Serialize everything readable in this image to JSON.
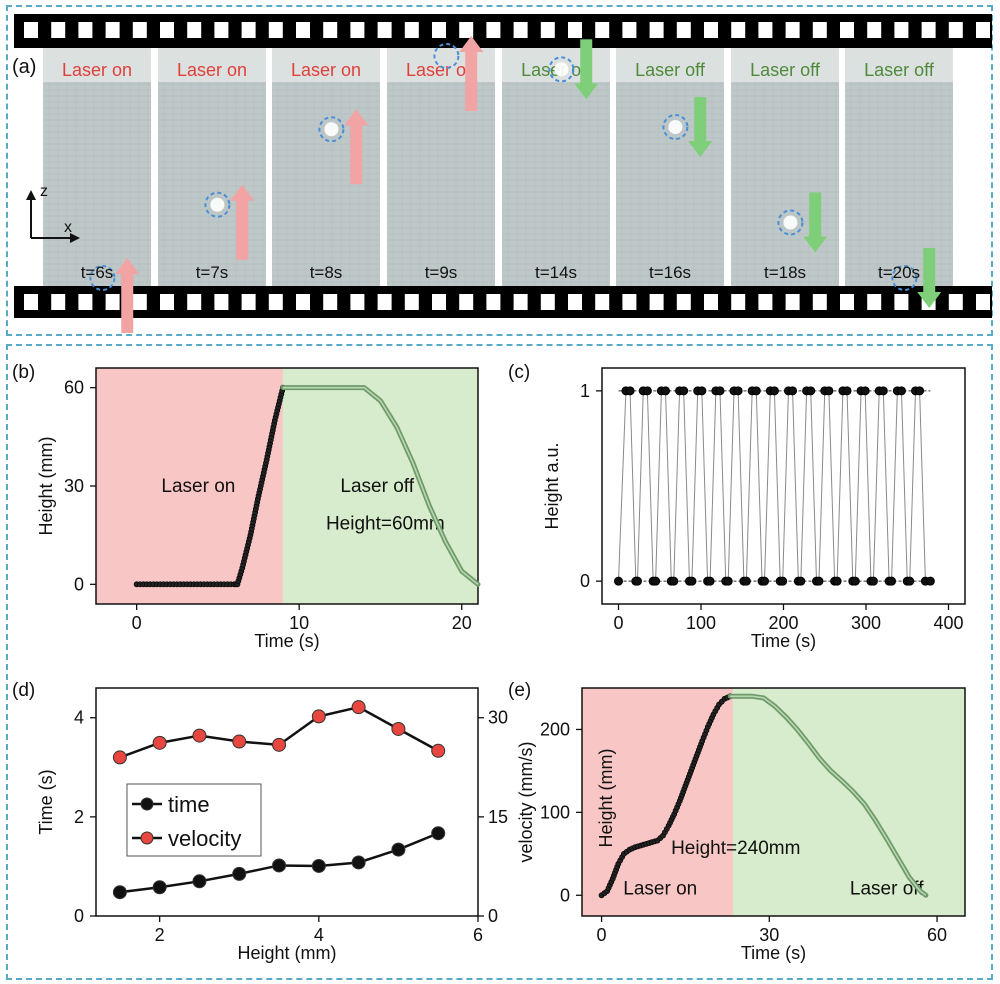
{
  "panel_a": {
    "letter": "(a)",
    "axis_z": "z",
    "axis_x": "x",
    "frames": [
      {
        "status": "Laser on",
        "state": "on",
        "time": "t=6s",
        "arrow": "up",
        "particle_level": 0.0
      },
      {
        "status": "Laser on",
        "state": "on",
        "time": "t=7s",
        "arrow": "up",
        "particle_level": 0.33
      },
      {
        "status": "Laser on",
        "state": "on",
        "time": "t=8s",
        "arrow": "up",
        "particle_level": 0.67
      },
      {
        "status": "Laser on",
        "state": "on",
        "time": "t=9s",
        "arrow": "up",
        "particle_level": 1.0
      },
      {
        "status": "Laser off",
        "state": "off",
        "time": "t=14s",
        "arrow": "down",
        "particle_level": 0.94
      },
      {
        "status": "Laser off",
        "state": "off",
        "time": "t=16s",
        "arrow": "down",
        "particle_level": 0.68
      },
      {
        "status": "Laser off",
        "state": "off",
        "time": "t=18s",
        "arrow": "down",
        "particle_level": 0.25
      },
      {
        "status": "Laser off",
        "state": "off",
        "time": "t=20s",
        "arrow": "down",
        "particle_level": 0.0
      }
    ]
  },
  "colors": {
    "laser_on_text": "#e0403a",
    "laser_off_text": "#4f8a3a",
    "laser_on_bg": "#f8c6c4",
    "laser_off_bg": "#d7eccc",
    "up_arrow": "#f2a3a3",
    "down_arrow": "#7fcf7a",
    "film": "#000000",
    "frame_bg": "#bfc8c8",
    "dashed_border": "#58aac9",
    "particle_ring": "#4a8fd6",
    "time_marker": "#e8473f",
    "velocity_marker": "#e8473f",
    "line_marker": "#111111",
    "green_curve": "#6f9a6a"
  },
  "chart_data": [
    {
      "id": "b",
      "letter": "(b)",
      "type": "line",
      "xlabel": "Time (s)",
      "ylabel": "Height (mm)",
      "xlim": [
        -2.5,
        21
      ],
      "ylim": [
        -6,
        66
      ],
      "xticks": [
        0,
        10,
        20
      ],
      "yticks": [
        0,
        30,
        60
      ],
      "regions": [
        {
          "label": "Laser on",
          "x0": -2.5,
          "x1": 9,
          "color": "laser_on"
        },
        {
          "label": "Laser off",
          "x0": 9,
          "x1": 21,
          "color": "laser_off"
        }
      ],
      "annotation": "Height=60mm",
      "series": [
        {
          "style": "black-markers",
          "x": [
            0,
            6,
            6.2,
            6.5,
            7,
            7.5,
            8,
            8.5,
            9
          ],
          "y": [
            0,
            0,
            0,
            5,
            15,
            27,
            38,
            50,
            60
          ]
        },
        {
          "style": "green-line",
          "x": [
            9,
            14,
            15,
            16,
            17,
            18,
            19,
            20,
            21
          ],
          "y": [
            60,
            60,
            56,
            48,
            37,
            24,
            13,
            4,
            0
          ]
        }
      ]
    },
    {
      "id": "c",
      "letter": "(c)",
      "type": "line",
      "xlabel": "Time (s)",
      "ylabel": "Height a.u.",
      "xlim": [
        -20,
        420
      ],
      "ylim": [
        -0.12,
        1.12
      ],
      "xticks": [
        0,
        100,
        200,
        300,
        400
      ],
      "yticks": [
        0,
        1
      ],
      "series": [
        {
          "style": "square-wave",
          "x": [
            0,
            9,
            14,
            21,
            23,
            30,
            35,
            42,
            45,
            52,
            57,
            64,
            67,
            74,
            79,
            86,
            89,
            96,
            101,
            108,
            111,
            118,
            123,
            130,
            133,
            140,
            145,
            152,
            155,
            162,
            167,
            174,
            177,
            184,
            189,
            196,
            199,
            206,
            211,
            218,
            221,
            228,
            233,
            240,
            243,
            250,
            255,
            262,
            265,
            272,
            277,
            284,
            287,
            294,
            299,
            306,
            309,
            316,
            321,
            328,
            331,
            338,
            343,
            350,
            353,
            360,
            365,
            372,
            378
          ],
          "y": [
            0,
            1,
            1,
            0,
            0,
            1,
            1,
            0,
            0,
            1,
            1,
            0,
            0,
            1,
            1,
            0,
            0,
            1,
            1,
            0,
            0,
            1,
            1,
            0,
            0,
            1,
            1,
            0,
            0,
            1,
            1,
            0,
            0,
            1,
            1,
            0,
            0,
            1,
            1,
            0,
            0,
            1,
            1,
            0,
            0,
            1,
            1,
            0,
            0,
            1,
            1,
            0,
            0,
            1,
            1,
            0,
            0,
            1,
            1,
            0,
            0,
            1,
            1,
            0,
            0,
            1,
            1,
            0,
            0
          ]
        }
      ]
    },
    {
      "id": "d",
      "letter": "(d)",
      "type": "line",
      "xlabel": "Height (mm)",
      "ylabel": "Time (s)",
      "ylabel_right": "velocity (mm/s)",
      "xlim": [
        1.2,
        6
      ],
      "ylim": [
        0,
        4.6
      ],
      "ylim_right": [
        0,
        34.5
      ],
      "xticks": [
        2,
        4,
        6
      ],
      "yticks": [
        0,
        2,
        4
      ],
      "yticks_right": [
        0,
        15,
        30
      ],
      "series": [
        {
          "name": "time",
          "axis": "left",
          "color": "line_marker",
          "x": [
            1.5,
            2,
            2.5,
            3,
            3.5,
            4,
            4.5,
            5,
            5.5
          ],
          "y": [
            0.48,
            0.58,
            0.7,
            0.85,
            1.02,
            1.01,
            1.08,
            1.34,
            1.67
          ]
        },
        {
          "name": "velocity",
          "axis": "right",
          "color": "velocity_marker",
          "x": [
            1.5,
            2,
            2.5,
            3,
            3.5,
            4,
            4.5,
            5,
            5.5
          ],
          "y": [
            24,
            26.2,
            27.3,
            26.4,
            25.9,
            30.2,
            31.6,
            28.3,
            25
          ]
        }
      ]
    },
    {
      "id": "e",
      "letter": "(e)",
      "type": "line",
      "xlabel": "Time (s)",
      "ylabel": "Height (mm)",
      "xlim": [
        -3.5,
        65
      ],
      "ylim": [
        -25,
        250
      ],
      "xticks": [
        0,
        30,
        60
      ],
      "yticks": [
        0,
        100,
        200
      ],
      "regions": [
        {
          "label": "Laser on",
          "x0": -3.5,
          "x1": 23.5,
          "color": "laser_on"
        },
        {
          "label": "Laser off",
          "x0": 23.5,
          "x1": 65,
          "color": "laser_off"
        }
      ],
      "annotation": "Height=240mm",
      "series": [
        {
          "style": "black-markers",
          "x": [
            0,
            1,
            2,
            3,
            4,
            5,
            6,
            7,
            8,
            9,
            10,
            11,
            12,
            13,
            14,
            15,
            16,
            17,
            18,
            19,
            20,
            21,
            22,
            23
          ],
          "y": [
            0,
            5,
            20,
            38,
            50,
            55,
            58,
            60,
            62,
            64,
            66,
            72,
            84,
            98,
            114,
            132,
            150,
            168,
            186,
            203,
            218,
            230,
            237,
            240
          ]
        },
        {
          "style": "green-line",
          "x": [
            23,
            27,
            29,
            31,
            33,
            35,
            37,
            39,
            41,
            43,
            45,
            47,
            49,
            51,
            53,
            55,
            57,
            58
          ],
          "y": [
            240,
            240,
            238,
            228,
            215,
            200,
            183,
            165,
            150,
            138,
            125,
            110,
            90,
            68,
            45,
            22,
            5,
            0
          ]
        }
      ]
    }
  ]
}
